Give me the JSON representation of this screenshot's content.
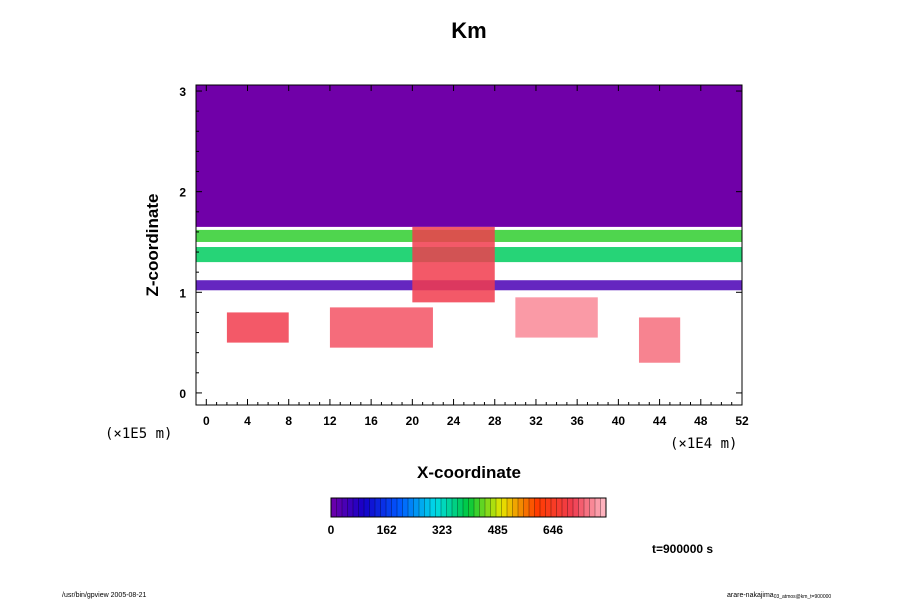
{
  "chart_data": {
    "type": "heatmap",
    "title": "Km",
    "xlabel": "X-coordinate",
    "ylabel": "Z-coordinate",
    "x_unit": "(×1E4 m)",
    "y_unit": "(×1E5 m)",
    "xlim": [
      -1,
      52
    ],
    "ylim": [
      -0.12,
      3.06
    ],
    "x_ticks": [
      "0",
      "4",
      "8",
      "12",
      "16",
      "20",
      "24",
      "28",
      "32",
      "36",
      "40",
      "44",
      "48",
      "52"
    ],
    "y_ticks": [
      "0",
      "1",
      "2",
      "3"
    ],
    "colorbar_ticks": [
      "0",
      "162",
      "323",
      "485",
      "646"
    ],
    "colorbar_range": [
      0,
      800
    ],
    "colormap": "rainbow-violet-to-pink",
    "time_label": "t=900000 s",
    "grid": false,
    "legend": "colorbar-bottom",
    "regions": [
      {
        "x": [
          -1,
          52
        ],
        "z": [
          1.65,
          3.06
        ],
        "value": 0
      },
      {
        "x": [
          -1,
          52
        ],
        "z": [
          1.5,
          1.62
        ],
        "value": 420
      },
      {
        "x": [
          -1,
          52
        ],
        "z": [
          1.3,
          1.45
        ],
        "value": 380
      },
      {
        "x": [
          -1,
          52
        ],
        "z": [
          1.02,
          1.12
        ],
        "value": 40
      },
      {
        "x": [
          20,
          28
        ],
        "z": [
          0.9,
          1.65
        ],
        "value": 700
      },
      {
        "x": [
          12,
          22
        ],
        "z": [
          0.45,
          0.85
        ],
        "value": 720
      },
      {
        "x": [
          30,
          38
        ],
        "z": [
          0.55,
          0.95
        ],
        "value": 760
      },
      {
        "x": [
          2,
          8
        ],
        "z": [
          0.5,
          0.8
        ],
        "value": 700
      },
      {
        "x": [
          42,
          46
        ],
        "z": [
          0.3,
          0.75
        ],
        "value": 740
      }
    ]
  },
  "footer": {
    "left": "/usr/bin/gpview 2005-08-21",
    "right": "arare-nakajima",
    "right_sub": "03_atmos@km_t=900000"
  },
  "colors": {
    "background_violet": "#7000a8",
    "frame": "#000000"
  }
}
